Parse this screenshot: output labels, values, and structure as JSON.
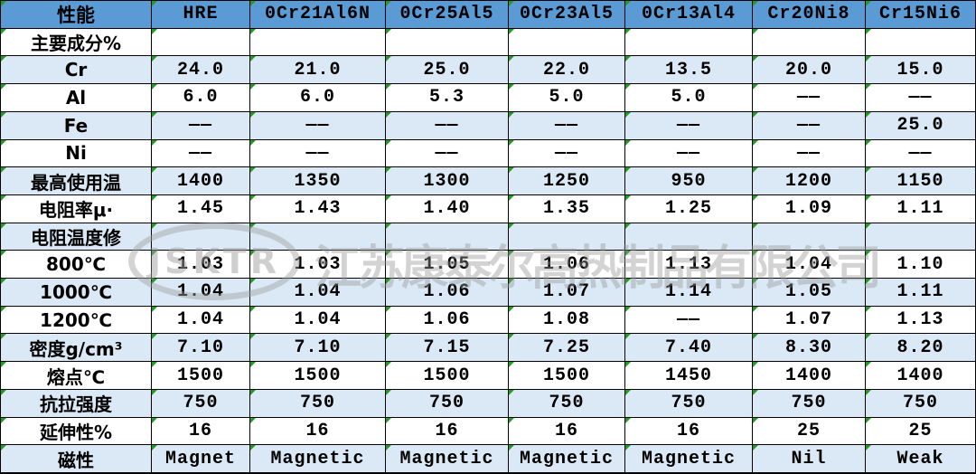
{
  "table": {
    "header": [
      "性能",
      "HRE",
      "0Cr21Al6N",
      "0Cr25Al5",
      "0Cr23Al5",
      "0Cr13Al4",
      "Cr20Ni8",
      "Cr15Ni6"
    ],
    "rows": [
      {
        "label": "主要成分%",
        "values": [
          "",
          "",
          "",
          "",
          "",
          "",
          ""
        ]
      },
      {
        "label": "Cr",
        "values": [
          "24.0",
          "21.0",
          "25.0",
          "22.0",
          "13.5",
          "20.0",
          "15.0"
        ]
      },
      {
        "label": "Al",
        "values": [
          "6.0",
          "6.0",
          "5.3",
          "5.0",
          "5.0",
          "——",
          "——"
        ]
      },
      {
        "label": "Fe",
        "values": [
          "——",
          "——",
          "——",
          "——",
          "——",
          "——",
          "25.0"
        ]
      },
      {
        "label": "Ni",
        "values": [
          "——",
          "——",
          "——",
          "——",
          "——",
          "——",
          "——"
        ]
      },
      {
        "label": "最高使用温",
        "values": [
          "1400",
          "1350",
          "1300",
          "1250",
          "950",
          "1200",
          "1150"
        ]
      },
      {
        "label": "电阻率μ·",
        "values": [
          "1.45",
          "1.43",
          "1.40",
          "1.35",
          "1.25",
          "1.09",
          "1.11"
        ]
      },
      {
        "label": "电阻温度修",
        "values": [
          "",
          "",
          "",
          "",
          "",
          "",
          ""
        ]
      },
      {
        "label": "800℃",
        "values": [
          "1.03",
          "1.03",
          "1.05",
          "1.06",
          "1.13",
          "1.04",
          "1.10"
        ]
      },
      {
        "label": "1000℃",
        "values": [
          "1.04",
          "1.04",
          "1.06",
          "1.07",
          "1.14",
          "1.05",
          "1.11"
        ]
      },
      {
        "label": "1200℃",
        "values": [
          "1.04",
          "1.04",
          "1.06",
          "1.08",
          "——",
          "1.07",
          "1.13"
        ]
      },
      {
        "label": "密度g/cm³",
        "values": [
          "7.10",
          "7.10",
          "7.15",
          "7.25",
          "7.40",
          "8.30",
          "8.20"
        ]
      },
      {
        "label": "熔点℃",
        "values": [
          "1500",
          "1500",
          "1500",
          "1500",
          "1450",
          "1400",
          "1400"
        ]
      },
      {
        "label": "抗拉强度",
        "values": [
          "750",
          "750",
          "750",
          "750",
          "750",
          "750",
          "750"
        ]
      },
      {
        "label": "延伸性%",
        "values": [
          "16",
          "16",
          "16",
          "16",
          "16",
          "25",
          "25"
        ]
      },
      {
        "label": "磁性",
        "values": [
          "Magnet",
          "Magnetic",
          "Magnetic",
          "Magnetic",
          "Magnetic",
          "Nil",
          "Weak"
        ]
      }
    ]
  },
  "watermark": {
    "logo": "JSKTR",
    "company": "江苏康泰尔高热制品有限公司"
  },
  "colors": {
    "header_bg": "#5b9bd5",
    "stripe_bg": "#dbe9f6",
    "row_bg": "#ffffff",
    "border": "#000000",
    "marker_green": "#1e9e1e",
    "text": "#000000"
  }
}
